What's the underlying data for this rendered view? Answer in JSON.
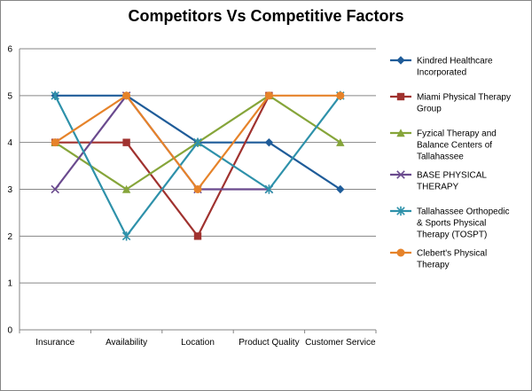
{
  "chart_data": {
    "type": "line",
    "title": "Competitors Vs Competitive Factors",
    "xlabel": "",
    "ylabel": "",
    "ylim": [
      0,
      6
    ],
    "yticks": [
      0,
      1,
      2,
      3,
      4,
      5,
      6
    ],
    "categories": [
      "Insurance",
      "Availability",
      "Location",
      "Product Quality",
      "Customer Service"
    ],
    "grid": true,
    "legend_position": "right",
    "series": [
      {
        "name": "Kindred Healthcare Incorporated",
        "name_lines": [
          "Kindred Healthcare",
          "Incorporated"
        ],
        "color": "#1F5C99",
        "marker": "diamond",
        "values": [
          5,
          5,
          4,
          4,
          3
        ]
      },
      {
        "name": "Miami Physical Therapy Group",
        "name_lines": [
          "Miami Physical Therapy",
          "Group"
        ],
        "color": "#A0322F",
        "marker": "square",
        "values": [
          4,
          4,
          2,
          5,
          null
        ]
      },
      {
        "name": "Fyzical Therapy and Balance Centers of Tallahassee",
        "name_lines": [
          "Fyzical Therapy and",
          "Balance Centers of",
          "Tallahassee"
        ],
        "color": "#86A53A",
        "marker": "triangle",
        "values": [
          4,
          3,
          4,
          5,
          4
        ]
      },
      {
        "name": "BASE PHYSICAL THERAPY",
        "name_lines": [
          "BASE PHYSICAL",
          "THERAPY"
        ],
        "color": "#6A4A8E",
        "marker": "x",
        "values": [
          3,
          5,
          3,
          3,
          null
        ]
      },
      {
        "name": "Tallahassee Orthopedic & Sports Physical Therapy (TOSPT)",
        "name_lines": [
          "Tallahassee Orthopedic",
          "& Sports Physical",
          "Therapy (TOSPT)"
        ],
        "color": "#2E91AA",
        "marker": "star",
        "values": [
          5,
          2,
          4,
          3,
          5
        ]
      },
      {
        "name": "Clebert's Physical Therapy",
        "name_lines": [
          "Clebert's Physical",
          "Therapy"
        ],
        "color": "#E6832A",
        "marker": "circle",
        "values": [
          4,
          5,
          3,
          5,
          5
        ]
      }
    ]
  }
}
